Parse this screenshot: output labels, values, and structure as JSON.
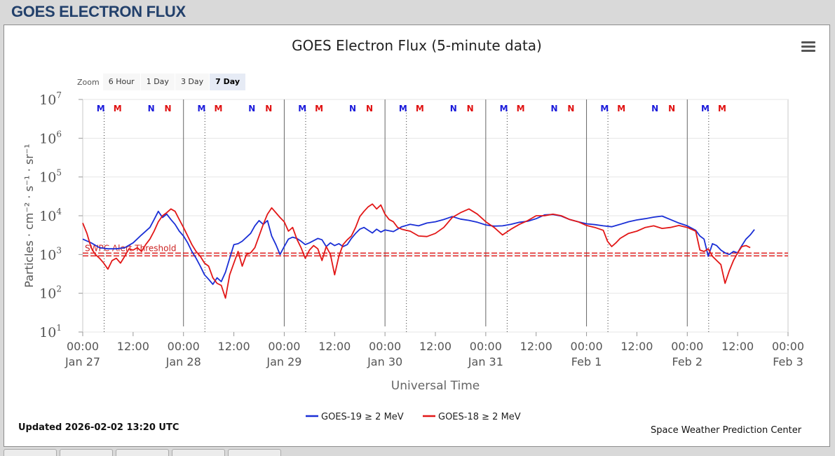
{
  "header": {
    "title": "GOES ELECTRON FLUX"
  },
  "chart_data": {
    "type": "line",
    "title": "GOES Electron Flux (5-minute data)",
    "xlabel": "Universal Time",
    "ylabel": "Particles · cm⁻² · s⁻¹ · sr⁻¹",
    "y_scale": "log",
    "ylim": [
      10,
      10000000
    ],
    "y_ticks": [
      {
        "value": 10,
        "base": "10",
        "exp": "1"
      },
      {
        "value": 100,
        "base": "10",
        "exp": "2"
      },
      {
        "value": 1000,
        "base": "10",
        "exp": "3"
      },
      {
        "value": 10000,
        "base": "10",
        "exp": "4"
      },
      {
        "value": 100000,
        "base": "10",
        "exp": "5"
      },
      {
        "value": 1000000,
        "base": "10",
        "exp": "6"
      },
      {
        "value": 10000000,
        "base": "10",
        "exp": "7"
      }
    ],
    "xlim": [
      "2026-01-27 00:00",
      "2026-02-03 00:00"
    ],
    "x_ticks": [
      {
        "hour": 0,
        "time": "00:00",
        "date": "Jan 27"
      },
      {
        "hour": 12,
        "time": "12:00",
        "date": ""
      },
      {
        "hour": 24,
        "time": "00:00",
        "date": "Jan 28"
      },
      {
        "hour": 36,
        "time": "12:00",
        "date": ""
      },
      {
        "hour": 48,
        "time": "00:00",
        "date": "Jan 29"
      },
      {
        "hour": 60,
        "time": "12:00",
        "date": ""
      },
      {
        "hour": 72,
        "time": "00:00",
        "date": "Jan 30"
      },
      {
        "hour": 84,
        "time": "12:00",
        "date": ""
      },
      {
        "hour": 96,
        "time": "00:00",
        "date": "Jan 31"
      },
      {
        "hour": 108,
        "time": "12:00",
        "date": ""
      },
      {
        "hour": 120,
        "time": "00:00",
        "date": "Feb 1"
      },
      {
        "hour": 132,
        "time": "12:00",
        "date": ""
      },
      {
        "hour": 144,
        "time": "00:00",
        "date": "Feb 2"
      },
      {
        "hour": 156,
        "time": "12:00",
        "date": ""
      },
      {
        "hour": 168,
        "time": "00:00",
        "date": "Feb 3"
      }
    ],
    "threshold": {
      "label": "SWPC Alert Threshold",
      "value": 1000
    },
    "day_lines_hours": [
      24,
      48,
      72,
      96,
      120,
      144
    ],
    "dotted_lines_hours": [
      5.1,
      29.1,
      53.1,
      77.1,
      101.1,
      125.1,
      149.1
    ],
    "markers": [
      {
        "hour": 4.3,
        "label": "M",
        "color": "#1a1adb"
      },
      {
        "hour": 8.3,
        "label": "M",
        "color": "#e01010"
      },
      {
        "hour": 16.3,
        "label": "N",
        "color": "#1a1adb"
      },
      {
        "hour": 20.3,
        "label": "N",
        "color": "#e01010"
      },
      {
        "hour": 28.3,
        "label": "M",
        "color": "#1a1adb"
      },
      {
        "hour": 32.3,
        "label": "M",
        "color": "#e01010"
      },
      {
        "hour": 40.3,
        "label": "N",
        "color": "#1a1adb"
      },
      {
        "hour": 44.3,
        "label": "N",
        "color": "#e01010"
      },
      {
        "hour": 52.3,
        "label": "M",
        "color": "#1a1adb"
      },
      {
        "hour": 56.3,
        "label": "M",
        "color": "#e01010"
      },
      {
        "hour": 64.3,
        "label": "N",
        "color": "#1a1adb"
      },
      {
        "hour": 68.3,
        "label": "N",
        "color": "#e01010"
      },
      {
        "hour": 76.3,
        "label": "M",
        "color": "#1a1adb"
      },
      {
        "hour": 80.3,
        "label": "M",
        "color": "#e01010"
      },
      {
        "hour": 88.3,
        "label": "N",
        "color": "#1a1adb"
      },
      {
        "hour": 92.3,
        "label": "N",
        "color": "#e01010"
      },
      {
        "hour": 100.3,
        "label": "M",
        "color": "#1a1adb"
      },
      {
        "hour": 104.3,
        "label": "M",
        "color": "#e01010"
      },
      {
        "hour": 112.3,
        "label": "N",
        "color": "#1a1adb"
      },
      {
        "hour": 116.3,
        "label": "N",
        "color": "#e01010"
      },
      {
        "hour": 124.3,
        "label": "M",
        "color": "#1a1adb"
      },
      {
        "hour": 128.3,
        "label": "M",
        "color": "#e01010"
      },
      {
        "hour": 136.3,
        "label": "N",
        "color": "#1a1adb"
      },
      {
        "hour": 140.3,
        "label": "N",
        "color": "#e01010"
      },
      {
        "hour": 148.3,
        "label": "M",
        "color": "#1a1adb"
      },
      {
        "hour": 152.3,
        "label": "M",
        "color": "#e01010"
      }
    ],
    "series": [
      {
        "name": "GOES-19 ≥ 2 MeV",
        "color": "#1a2fd6",
        "points": [
          [
            0,
            2500
          ],
          [
            2,
            2000
          ],
          [
            4,
            1500
          ],
          [
            6,
            1400
          ],
          [
            8,
            1400
          ],
          [
            10,
            1500
          ],
          [
            12,
            2000
          ],
          [
            14,
            3200
          ],
          [
            16,
            5000
          ],
          [
            17,
            8000
          ],
          [
            18,
            13000
          ],
          [
            19,
            9000
          ],
          [
            20,
            11000
          ],
          [
            21,
            8000
          ],
          [
            22,
            6000
          ],
          [
            23,
            4000
          ],
          [
            24,
            3000
          ],
          [
            25,
            2000
          ],
          [
            26,
            1200
          ],
          [
            27,
            800
          ],
          [
            28,
            500
          ],
          [
            29,
            300
          ],
          [
            30,
            230
          ],
          [
            31,
            170
          ],
          [
            32,
            250
          ],
          [
            33,
            200
          ],
          [
            34,
            350
          ],
          [
            35,
            800
          ],
          [
            36,
            1800
          ],
          [
            37,
            1900
          ],
          [
            38,
            2200
          ],
          [
            40,
            3500
          ],
          [
            41,
            5500
          ],
          [
            42,
            7500
          ],
          [
            43,
            6000
          ],
          [
            44,
            7500
          ],
          [
            45,
            3000
          ],
          [
            46,
            1800
          ],
          [
            47,
            1000
          ],
          [
            48,
            1600
          ],
          [
            49,
            2500
          ],
          [
            50,
            2800
          ],
          [
            51,
            2600
          ],
          [
            52,
            2200
          ],
          [
            53,
            1800
          ],
          [
            54,
            2000
          ],
          [
            56,
            2600
          ],
          [
            57,
            2400
          ],
          [
            58,
            1600
          ],
          [
            59,
            2000
          ],
          [
            60,
            1700
          ],
          [
            61,
            1900
          ],
          [
            62,
            1600
          ],
          [
            63,
            1800
          ],
          [
            64,
            2600
          ],
          [
            65,
            3500
          ],
          [
            66,
            4500
          ],
          [
            67,
            5000
          ],
          [
            68,
            4200
          ],
          [
            69,
            3600
          ],
          [
            70,
            4500
          ],
          [
            71,
            3800
          ],
          [
            72,
            4300
          ],
          [
            74,
            3900
          ],
          [
            76,
            5200
          ],
          [
            78,
            6000
          ],
          [
            80,
            5500
          ],
          [
            82,
            6500
          ],
          [
            84,
            7000
          ],
          [
            86,
            8000
          ],
          [
            88,
            9500
          ],
          [
            90,
            8200
          ],
          [
            92,
            7600
          ],
          [
            94,
            6800
          ],
          [
            96,
            5800
          ],
          [
            98,
            5400
          ],
          [
            100,
            5500
          ],
          [
            102,
            6000
          ],
          [
            104,
            6800
          ],
          [
            106,
            7200
          ],
          [
            108,
            8400
          ],
          [
            110,
            10500
          ],
          [
            112,
            10800
          ],
          [
            114,
            9800
          ],
          [
            116,
            8000
          ],
          [
            118,
            7000
          ],
          [
            120,
            6200
          ],
          [
            122,
            5900
          ],
          [
            124,
            5500
          ],
          [
            126,
            5200
          ],
          [
            128,
            6000
          ],
          [
            130,
            7000
          ],
          [
            132,
            7800
          ],
          [
            134,
            8400
          ],
          [
            136,
            9200
          ],
          [
            138,
            9800
          ],
          [
            140,
            8000
          ],
          [
            142,
            6500
          ],
          [
            144,
            5500
          ],
          [
            146,
            4200
          ],
          [
            147,
            3000
          ],
          [
            148,
            2500
          ],
          [
            149,
            900
          ],
          [
            150,
            1900
          ],
          [
            151,
            1700
          ],
          [
            152,
            1300
          ],
          [
            153,
            1100
          ],
          [
            154,
            1000
          ],
          [
            155,
            1200
          ],
          [
            156,
            1100
          ],
          [
            157,
            1700
          ],
          [
            158,
            2500
          ],
          [
            159,
            3200
          ],
          [
            160,
            4400
          ]
        ]
      },
      {
        "name": "GOES-18 ≥ 2 MeV",
        "color": "#e21717",
        "points": [
          [
            0,
            6500
          ],
          [
            1,
            3500
          ],
          [
            2,
            1500
          ],
          [
            3,
            1000
          ],
          [
            4,
            800
          ],
          [
            5,
            600
          ],
          [
            6,
            420
          ],
          [
            7,
            700
          ],
          [
            8,
            800
          ],
          [
            9,
            600
          ],
          [
            10,
            900
          ],
          [
            11,
            1400
          ],
          [
            12,
            1300
          ],
          [
            13,
            1500
          ],
          [
            14,
            1200
          ],
          [
            15,
            1800
          ],
          [
            16,
            2500
          ],
          [
            17,
            4000
          ],
          [
            18,
            7000
          ],
          [
            19,
            10000
          ],
          [
            20,
            12000
          ],
          [
            21,
            15000
          ],
          [
            22,
            13000
          ],
          [
            23,
            8000
          ],
          [
            24,
            5000
          ],
          [
            25,
            3000
          ],
          [
            26,
            1800
          ],
          [
            27,
            1200
          ],
          [
            28,
            900
          ],
          [
            29,
            600
          ],
          [
            30,
            500
          ],
          [
            31,
            250
          ],
          [
            32,
            180
          ],
          [
            33,
            160
          ],
          [
            34,
            75
          ],
          [
            35,
            300
          ],
          [
            36,
            600
          ],
          [
            37,
            1200
          ],
          [
            38,
            500
          ],
          [
            39,
            1000
          ],
          [
            40,
            1100
          ],
          [
            41,
            1500
          ],
          [
            42,
            3000
          ],
          [
            43,
            6000
          ],
          [
            44,
            11000
          ],
          [
            45,
            16000
          ],
          [
            46,
            12000
          ],
          [
            47,
            9000
          ],
          [
            48,
            7000
          ],
          [
            49,
            4000
          ],
          [
            50,
            5000
          ],
          [
            51,
            2500
          ],
          [
            52,
            1500
          ],
          [
            53,
            800
          ],
          [
            54,
            1300
          ],
          [
            55,
            1700
          ],
          [
            56,
            1400
          ],
          [
            57,
            700
          ],
          [
            58,
            1600
          ],
          [
            59,
            1000
          ],
          [
            60,
            300
          ],
          [
            61,
            900
          ],
          [
            62,
            1800
          ],
          [
            63,
            2400
          ],
          [
            64,
            3000
          ],
          [
            65,
            5000
          ],
          [
            66,
            9500
          ],
          [
            67,
            13000
          ],
          [
            68,
            17000
          ],
          [
            69,
            20000
          ],
          [
            70,
            15000
          ],
          [
            71,
            19000
          ],
          [
            72,
            11000
          ],
          [
            73,
            8000
          ],
          [
            74,
            7000
          ],
          [
            75,
            5000
          ],
          [
            76,
            4500
          ],
          [
            77,
            4200
          ],
          [
            78,
            4000
          ],
          [
            80,
            3000
          ],
          [
            82,
            2900
          ],
          [
            84,
            3500
          ],
          [
            86,
            5000
          ],
          [
            88,
            9000
          ],
          [
            90,
            12000
          ],
          [
            92,
            15000
          ],
          [
            94,
            11000
          ],
          [
            96,
            7000
          ],
          [
            98,
            5000
          ],
          [
            100,
            3200
          ],
          [
            102,
            4500
          ],
          [
            104,
            6000
          ],
          [
            106,
            7500
          ],
          [
            108,
            10000
          ],
          [
            110,
            10000
          ],
          [
            112,
            11000
          ],
          [
            114,
            10000
          ],
          [
            116,
            8000
          ],
          [
            118,
            7000
          ],
          [
            120,
            5600
          ],
          [
            122,
            5000
          ],
          [
            124,
            4200
          ],
          [
            125,
            2200
          ],
          [
            126,
            1600
          ],
          [
            127,
            2000
          ],
          [
            128,
            2600
          ],
          [
            130,
            3500
          ],
          [
            132,
            4000
          ],
          [
            134,
            5000
          ],
          [
            136,
            5500
          ],
          [
            138,
            4700
          ],
          [
            140,
            5000
          ],
          [
            142,
            5600
          ],
          [
            144,
            5000
          ],
          [
            146,
            4000
          ],
          [
            147,
            1300
          ],
          [
            148,
            1200
          ],
          [
            149,
            1400
          ],
          [
            150,
            900
          ],
          [
            151,
            700
          ],
          [
            152,
            550
          ],
          [
            153,
            180
          ],
          [
            154,
            380
          ],
          [
            155,
            700
          ],
          [
            156,
            1100
          ],
          [
            157,
            1600
          ],
          [
            158,
            1700
          ],
          [
            159,
            1500
          ]
        ]
      }
    ],
    "legend": "bottom-center",
    "grid": true
  },
  "zoom": {
    "label": "Zoom",
    "buttons": [
      {
        "label": "6 Hour",
        "active": false
      },
      {
        "label": "1 Day",
        "active": false
      },
      {
        "label": "3 Day",
        "active": false
      },
      {
        "label": "7 Day",
        "active": true
      }
    ]
  },
  "footer": {
    "updated": "Updated 2026-02-02 13:20 UTC",
    "credit": "Space Weather Prediction Center"
  }
}
